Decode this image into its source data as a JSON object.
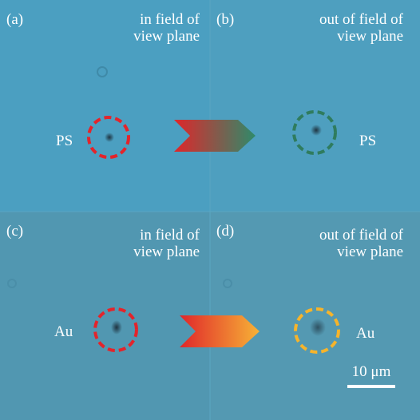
{
  "panels": [
    {
      "label": "(a)",
      "caption": [
        "in field of",
        "view plane"
      ],
      "particle": "PS"
    },
    {
      "label": "(b)",
      "caption": [
        "out of field of",
        "view plane"
      ],
      "particle": "PS"
    },
    {
      "label": "(c)",
      "caption": [
        "in field of",
        "view plane"
      ],
      "particle": "Au"
    },
    {
      "label": "(d)",
      "caption": [
        "out of field of",
        "view plane"
      ],
      "particle": "Au"
    }
  ],
  "scale_bar": "10 μm"
}
